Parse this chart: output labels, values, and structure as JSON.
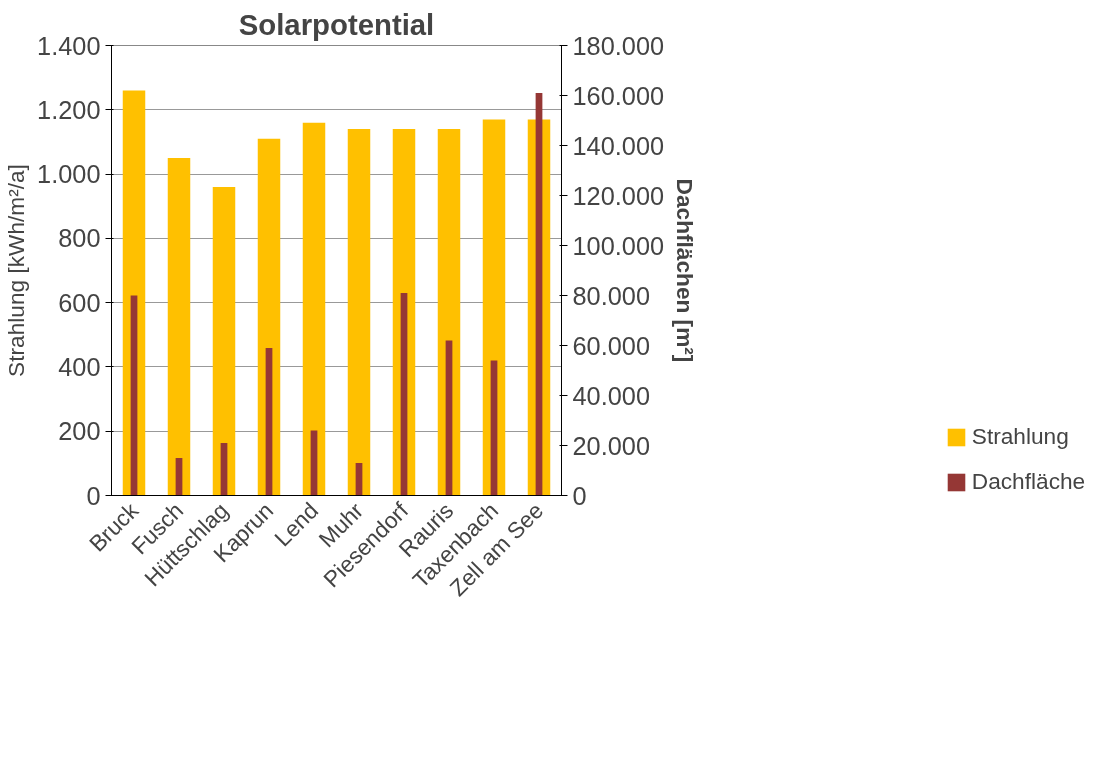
{
  "chart_data": {
    "type": "bar",
    "title": "Solarpotential",
    "ylabel": "Strahlung [kWh/m²/a]",
    "y2label": "Dachflächen [m²]",
    "categories": [
      "Bruck",
      "Fusch",
      "Hüttschlag",
      "Kaprun",
      "Lend",
      "Muhr",
      "Piesendorf",
      "Rauris",
      "Taxenbach",
      "Zell am See"
    ],
    "series": [
      {
        "name": "Strahlung",
        "color": "#ffc000",
        "values": [
          1260,
          1050,
          960,
          1110,
          1160,
          1140,
          1140,
          1140,
          1170,
          1170
        ]
      },
      {
        "name": "Dachfläche",
        "color": "#953735",
        "axis": "y2",
        "values": [
          80000,
          15000,
          21000,
          59000,
          26000,
          13000,
          81000,
          62000,
          54000,
          161000
        ]
      }
    ],
    "ylim": [
      0,
      1400
    ],
    "yticks": [
      0,
      200,
      400,
      600,
      800,
      {
        "value": 1000,
        "label": "1.000"
      },
      {
        "value": 1200,
        "label": "1.200"
      },
      {
        "value": 1400,
        "label": "1.400"
      }
    ],
    "y2lim": [
      0,
      180000
    ],
    "y2ticks": [
      0,
      {
        "value": 20000,
        "label": "20.000"
      },
      {
        "value": 40000,
        "label": "40.000"
      },
      {
        "value": 60000,
        "label": "60.000"
      },
      {
        "value": 80000,
        "label": "80.000"
      },
      {
        "value": 100000,
        "label": "100.000"
      },
      {
        "value": 120000,
        "label": "120.000"
      },
      {
        "value": 140000,
        "label": "140.000"
      },
      {
        "value": 160000,
        "label": "160.000"
      },
      {
        "value": 180000,
        "label": "180.000"
      }
    ],
    "grid": "y",
    "legend": "bottom right"
  }
}
